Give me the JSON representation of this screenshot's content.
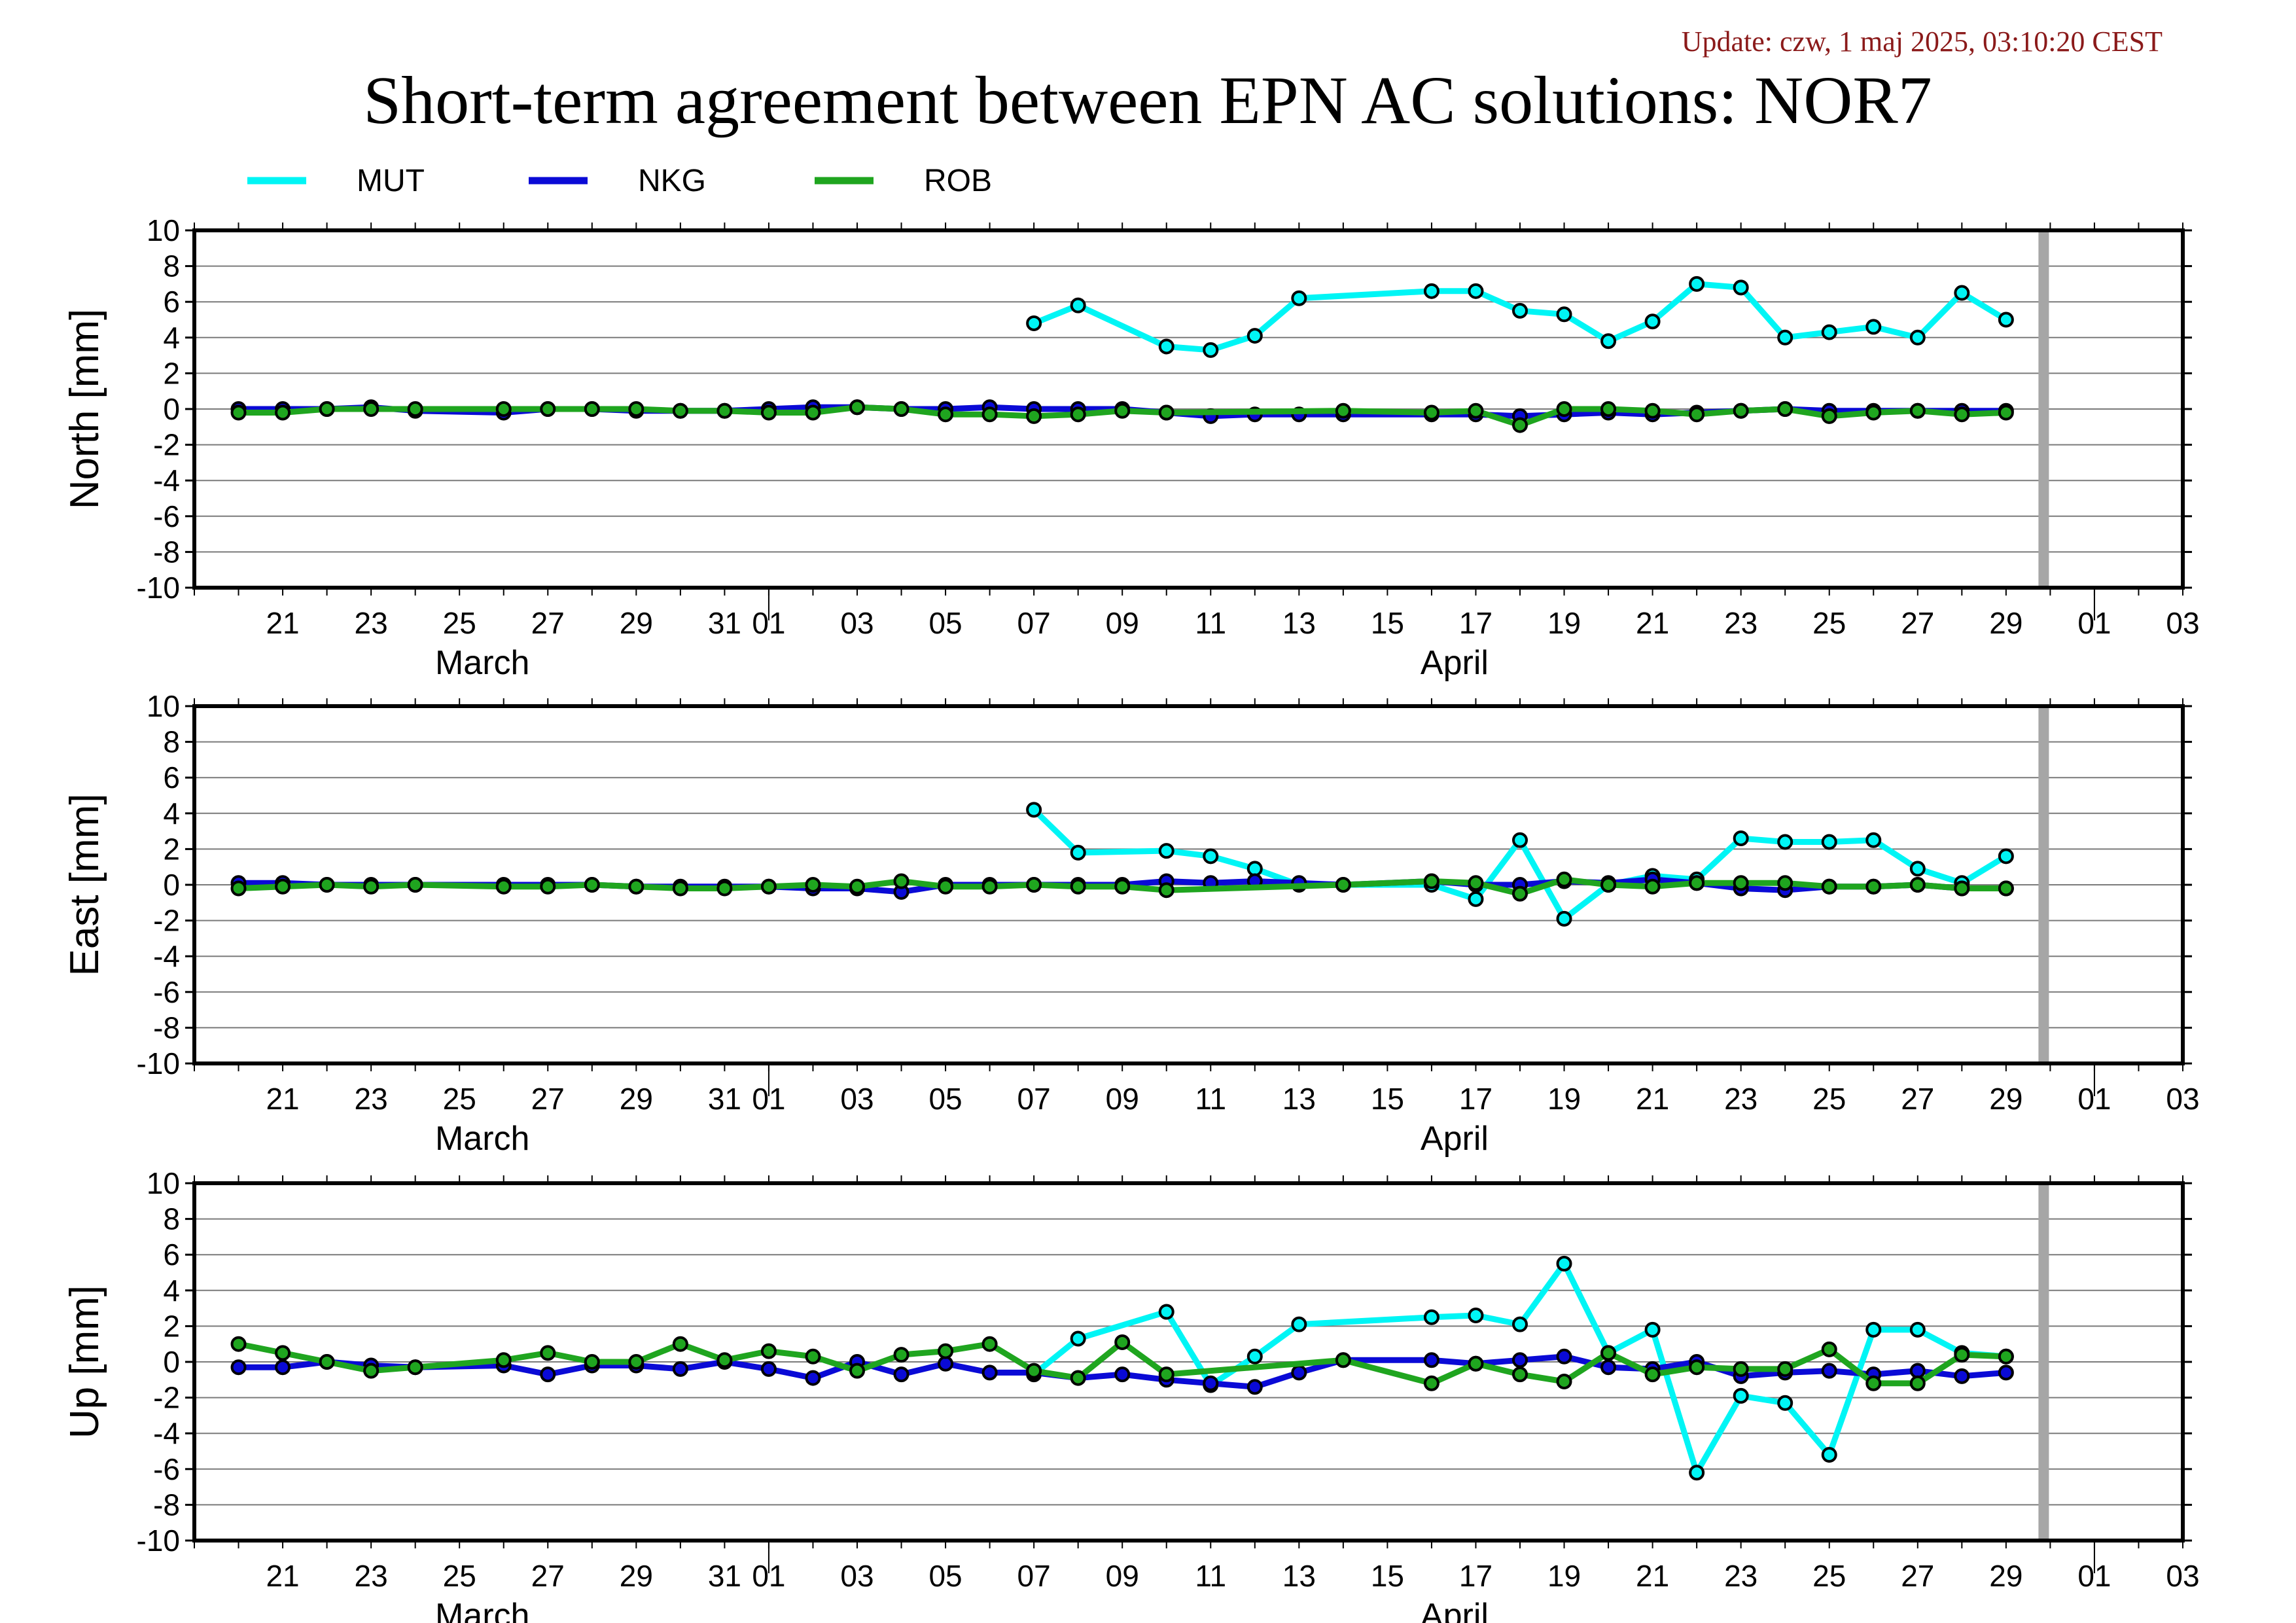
{
  "update_text": "Update: czw, 1 maj 2025, 03:10:20 CEST",
  "title": "Short-term agreement between EPN AC solutions: NOR7",
  "colors": {
    "MUT": "#00f5f5",
    "NKG": "#0a0ad6",
    "ROB": "#1fa51f",
    "update": "#8b1a1a",
    "marker_line": "#000000",
    "gap_bar": "#a6a6a6"
  },
  "legend": [
    {
      "name": "MUT"
    },
    {
      "name": "NKG"
    },
    {
      "name": "ROB"
    }
  ],
  "chart_data": [
    {
      "type": "line",
      "ylabel": "North [mm]",
      "ylim": [
        -10,
        10
      ],
      "ytick_labels": [
        "10",
        "8",
        "6",
        "4",
        "2",
        "0",
        "-2",
        "-4",
        "-6",
        "-8",
        "-10"
      ],
      "xlim": [
        "2025-03-19",
        "2025-05-03"
      ],
      "x_tick_labels": [
        "21",
        "23",
        "25",
        "27",
        "29",
        "31",
        "01",
        "03",
        "05",
        "07",
        "09",
        "11",
        "13",
        "15",
        "17",
        "19",
        "21",
        "23",
        "25",
        "27",
        "29",
        "01",
        "03"
      ],
      "month_labels": [
        "March",
        "April"
      ],
      "grid": true,
      "gap_marker_date": "2025-04-30",
      "series": [
        {
          "name": "MUT",
          "x": [
            "2025-04-07",
            "2025-04-08",
            "2025-04-10",
            "2025-04-11",
            "2025-04-12",
            "2025-04-13",
            "2025-04-16",
            "2025-04-17",
            "2025-04-18",
            "2025-04-19",
            "2025-04-20",
            "2025-04-21",
            "2025-04-22",
            "2025-04-23",
            "2025-04-24",
            "2025-04-25",
            "2025-04-26",
            "2025-04-27",
            "2025-04-28",
            "2025-04-29"
          ],
          "y": [
            4.8,
            5.8,
            3.5,
            3.3,
            4.1,
            6.2,
            6.6,
            6.6,
            5.5,
            5.3,
            3.8,
            4.9,
            7.0,
            6.8,
            4.0,
            4.3,
            4.6,
            4.0,
            6.5,
            5.0
          ]
        },
        {
          "name": "NKG",
          "x": [
            "2025-03-20",
            "2025-03-21",
            "2025-03-22",
            "2025-03-23",
            "2025-03-24",
            "2025-03-26",
            "2025-03-27",
            "2025-03-28",
            "2025-03-29",
            "2025-03-30",
            "2025-03-31",
            "2025-04-01",
            "2025-04-02",
            "2025-04-03",
            "2025-04-04",
            "2025-04-05",
            "2025-04-06",
            "2025-04-07",
            "2025-04-08",
            "2025-04-09",
            "2025-04-10",
            "2025-04-11",
            "2025-04-12",
            "2025-04-13",
            "2025-04-14",
            "2025-04-16",
            "2025-04-17",
            "2025-04-18",
            "2025-04-19",
            "2025-04-20",
            "2025-04-21",
            "2025-04-22",
            "2025-04-23",
            "2025-04-24",
            "2025-04-25",
            "2025-04-26",
            "2025-04-27",
            "2025-04-28",
            "2025-04-29"
          ],
          "y": [
            0.0,
            0.0,
            0.0,
            0.1,
            -0.1,
            -0.2,
            0.0,
            0.0,
            -0.1,
            -0.1,
            -0.1,
            0.0,
            0.1,
            0.1,
            0.0,
            0.0,
            0.1,
            0.0,
            0.0,
            0.0,
            -0.2,
            -0.4,
            -0.3,
            -0.3,
            -0.3,
            -0.3,
            -0.3,
            -0.4,
            -0.3,
            -0.2,
            -0.3,
            -0.2,
            -0.1,
            0.0,
            -0.1,
            -0.1,
            -0.1,
            -0.1,
            -0.1
          ]
        },
        {
          "name": "ROB",
          "x": [
            "2025-03-20",
            "2025-03-21",
            "2025-03-22",
            "2025-03-23",
            "2025-03-24",
            "2025-03-26",
            "2025-03-27",
            "2025-03-28",
            "2025-03-29",
            "2025-03-30",
            "2025-03-31",
            "2025-04-01",
            "2025-04-02",
            "2025-04-03",
            "2025-04-04",
            "2025-04-05",
            "2025-04-06",
            "2025-04-07",
            "2025-04-08",
            "2025-04-09",
            "2025-04-10",
            "2025-04-14",
            "2025-04-16",
            "2025-04-17",
            "2025-04-18",
            "2025-04-19",
            "2025-04-20",
            "2025-04-21",
            "2025-04-22",
            "2025-04-23",
            "2025-04-24",
            "2025-04-25",
            "2025-04-26",
            "2025-04-27",
            "2025-04-28",
            "2025-04-29"
          ],
          "y": [
            -0.2,
            -0.2,
            0.0,
            0.0,
            0.0,
            0.0,
            0.0,
            0.0,
            0.0,
            -0.1,
            -0.1,
            -0.2,
            -0.2,
            0.1,
            0.0,
            -0.3,
            -0.3,
            -0.4,
            -0.3,
            -0.1,
            -0.2,
            -0.1,
            -0.2,
            -0.1,
            -0.9,
            0.0,
            0.0,
            -0.1,
            -0.3,
            -0.1,
            0.0,
            -0.4,
            -0.2,
            -0.1,
            -0.3,
            -0.2
          ]
        }
      ]
    },
    {
      "type": "line",
      "ylabel": "East [mm]",
      "ylim": [
        -10,
        10
      ],
      "ytick_labels": [
        "10",
        "8",
        "6",
        "4",
        "2",
        "0",
        "-2",
        "-4",
        "-6",
        "-8",
        "-10"
      ],
      "xlim": [
        "2025-03-19",
        "2025-05-03"
      ],
      "x_tick_labels": [
        "21",
        "23",
        "25",
        "27",
        "29",
        "31",
        "01",
        "03",
        "05",
        "07",
        "09",
        "11",
        "13",
        "15",
        "17",
        "19",
        "21",
        "23",
        "25",
        "27",
        "29",
        "01",
        "03"
      ],
      "month_labels": [
        "March",
        "April"
      ],
      "grid": true,
      "gap_marker_date": "2025-04-30",
      "series": [
        {
          "name": "MUT",
          "x": [
            "2025-04-07",
            "2025-04-08",
            "2025-04-10",
            "2025-04-11",
            "2025-04-12",
            "2025-04-13",
            "2025-04-16",
            "2025-04-17",
            "2025-04-18",
            "2025-04-19",
            "2025-04-20",
            "2025-04-21",
            "2025-04-22",
            "2025-04-23",
            "2025-04-24",
            "2025-04-25",
            "2025-04-26",
            "2025-04-27",
            "2025-04-28",
            "2025-04-29"
          ],
          "y": [
            4.2,
            1.8,
            1.9,
            1.6,
            0.9,
            0.0,
            0.0,
            -0.8,
            2.5,
            -1.9,
            0.0,
            0.5,
            0.3,
            2.6,
            2.4,
            2.4,
            2.5,
            0.9,
            0.1,
            1.6
          ]
        },
        {
          "name": "NKG",
          "x": [
            "2025-03-20",
            "2025-03-21",
            "2025-03-22",
            "2025-03-23",
            "2025-03-24",
            "2025-03-26",
            "2025-03-27",
            "2025-03-28",
            "2025-03-29",
            "2025-03-30",
            "2025-03-31",
            "2025-04-01",
            "2025-04-02",
            "2025-04-03",
            "2025-04-04",
            "2025-04-05",
            "2025-04-06",
            "2025-04-07",
            "2025-04-08",
            "2025-04-09",
            "2025-04-10",
            "2025-04-11",
            "2025-04-12",
            "2025-04-13",
            "2025-04-14",
            "2025-04-16",
            "2025-04-17",
            "2025-04-18",
            "2025-04-19",
            "2025-04-20",
            "2025-04-21",
            "2025-04-22",
            "2025-04-23",
            "2025-04-24",
            "2025-04-25",
            "2025-04-26",
            "2025-04-27",
            "2025-04-28",
            "2025-04-29"
          ],
          "y": [
            0.1,
            0.1,
            0.0,
            0.0,
            0.0,
            0.0,
            0.0,
            0.0,
            -0.1,
            -0.1,
            -0.1,
            -0.1,
            -0.2,
            -0.2,
            -0.4,
            0.0,
            0.0,
            0.0,
            0.0,
            0.0,
            0.2,
            0.1,
            0.2,
            0.1,
            0.0,
            0.2,
            0.0,
            0.0,
            0.2,
            0.1,
            0.3,
            0.1,
            -0.2,
            -0.3,
            -0.1,
            -0.1,
            0.0,
            -0.2,
            -0.2
          ]
        },
        {
          "name": "ROB",
          "x": [
            "2025-03-20",
            "2025-03-21",
            "2025-03-22",
            "2025-03-23",
            "2025-03-24",
            "2025-03-26",
            "2025-03-27",
            "2025-03-28",
            "2025-03-29",
            "2025-03-30",
            "2025-03-31",
            "2025-04-01",
            "2025-04-02",
            "2025-04-03",
            "2025-04-04",
            "2025-04-05",
            "2025-04-06",
            "2025-04-07",
            "2025-04-08",
            "2025-04-09",
            "2025-04-10",
            "2025-04-14",
            "2025-04-16",
            "2025-04-17",
            "2025-04-18",
            "2025-04-19",
            "2025-04-20",
            "2025-04-21",
            "2025-04-22",
            "2025-04-23",
            "2025-04-24",
            "2025-04-25",
            "2025-04-26",
            "2025-04-27",
            "2025-04-28",
            "2025-04-29"
          ],
          "y": [
            -0.2,
            -0.1,
            0.0,
            -0.1,
            0.0,
            -0.1,
            -0.1,
            0.0,
            -0.1,
            -0.2,
            -0.2,
            -0.1,
            0.0,
            -0.1,
            0.2,
            -0.1,
            -0.1,
            0.0,
            -0.1,
            -0.1,
            -0.3,
            0.0,
            0.2,
            0.1,
            -0.5,
            0.3,
            0.0,
            -0.1,
            0.1,
            0.1,
            0.1,
            -0.1,
            -0.1,
            0.0,
            -0.2,
            -0.2
          ]
        }
      ]
    },
    {
      "type": "line",
      "ylabel": "Up [mm]",
      "ylim": [
        -10,
        10
      ],
      "ytick_labels": [
        "10",
        "8",
        "6",
        "4",
        "2",
        "0",
        "-2",
        "-4",
        "-6",
        "-8",
        "-10"
      ],
      "xlim": [
        "2025-03-19",
        "2025-05-03"
      ],
      "x_tick_labels": [
        "21",
        "23",
        "25",
        "27",
        "29",
        "31",
        "01",
        "03",
        "05",
        "07",
        "09",
        "11",
        "13",
        "15",
        "17",
        "19",
        "21",
        "23",
        "25",
        "27",
        "29",
        "01",
        "03"
      ],
      "month_labels": [
        "March",
        "April"
      ],
      "grid": true,
      "gap_marker_date": "2025-04-30",
      "series": [
        {
          "name": "MUT",
          "x": [
            "2025-04-07",
            "2025-04-08",
            "2025-04-10",
            "2025-04-11",
            "2025-04-12",
            "2025-04-13",
            "2025-04-16",
            "2025-04-17",
            "2025-04-18",
            "2025-04-19",
            "2025-04-20",
            "2025-04-21",
            "2025-04-22",
            "2025-04-23",
            "2025-04-24",
            "2025-04-25",
            "2025-04-26",
            "2025-04-27",
            "2025-04-28",
            "2025-04-29"
          ],
          "y": [
            -0.7,
            1.3,
            2.8,
            -1.3,
            0.3,
            2.1,
            2.5,
            2.6,
            2.1,
            5.5,
            0.5,
            1.8,
            -6.2,
            -1.9,
            -2.3,
            -5.2,
            1.8,
            1.8,
            0.5,
            0.3
          ]
        },
        {
          "name": "NKG",
          "x": [
            "2025-03-20",
            "2025-03-21",
            "2025-03-22",
            "2025-03-23",
            "2025-03-24",
            "2025-03-26",
            "2025-03-27",
            "2025-03-28",
            "2025-03-29",
            "2025-03-30",
            "2025-03-31",
            "2025-04-01",
            "2025-04-02",
            "2025-04-03",
            "2025-04-04",
            "2025-04-05",
            "2025-04-06",
            "2025-04-07",
            "2025-04-08",
            "2025-04-09",
            "2025-04-10",
            "2025-04-11",
            "2025-04-12",
            "2025-04-13",
            "2025-04-14",
            "2025-04-16",
            "2025-04-17",
            "2025-04-18",
            "2025-04-19",
            "2025-04-20",
            "2025-04-21",
            "2025-04-22",
            "2025-04-23",
            "2025-04-24",
            "2025-04-25",
            "2025-04-26",
            "2025-04-27",
            "2025-04-28",
            "2025-04-29"
          ],
          "y": [
            -0.3,
            -0.3,
            0.0,
            -0.2,
            -0.3,
            -0.2,
            -0.7,
            -0.2,
            -0.2,
            -0.4,
            0.0,
            -0.4,
            -0.9,
            0.0,
            -0.7,
            -0.1,
            -0.6,
            -0.6,
            -0.9,
            -0.7,
            -1.0,
            -1.2,
            -1.4,
            -0.6,
            0.1,
            0.1,
            -0.1,
            0.1,
            0.3,
            -0.3,
            -0.4,
            0.0,
            -0.8,
            -0.6,
            -0.5,
            -0.7,
            -0.5,
            -0.8,
            -0.6
          ]
        },
        {
          "name": "ROB",
          "x": [
            "2025-03-20",
            "2025-03-21",
            "2025-03-22",
            "2025-03-23",
            "2025-03-24",
            "2025-03-26",
            "2025-03-27",
            "2025-03-28",
            "2025-03-29",
            "2025-03-30",
            "2025-03-31",
            "2025-04-01",
            "2025-04-02",
            "2025-04-03",
            "2025-04-04",
            "2025-04-05",
            "2025-04-06",
            "2025-04-07",
            "2025-04-08",
            "2025-04-09",
            "2025-04-10",
            "2025-04-14",
            "2025-04-16",
            "2025-04-17",
            "2025-04-18",
            "2025-04-19",
            "2025-04-20",
            "2025-04-21",
            "2025-04-22",
            "2025-04-23",
            "2025-04-24",
            "2025-04-25",
            "2025-04-26",
            "2025-04-27",
            "2025-04-28",
            "2025-04-29"
          ],
          "y": [
            1.0,
            0.5,
            0.0,
            -0.5,
            -0.3,
            0.1,
            0.5,
            0.0,
            0.0,
            1.0,
            0.1,
            0.6,
            0.3,
            -0.5,
            0.4,
            0.6,
            1.0,
            -0.5,
            -0.9,
            1.1,
            -0.7,
            0.1,
            -1.2,
            -0.1,
            -0.7,
            -1.1,
            0.5,
            -0.7,
            -0.3,
            -0.4,
            -0.4,
            0.7,
            -1.2,
            -1.2,
            0.4,
            0.3
          ]
        }
      ]
    }
  ]
}
